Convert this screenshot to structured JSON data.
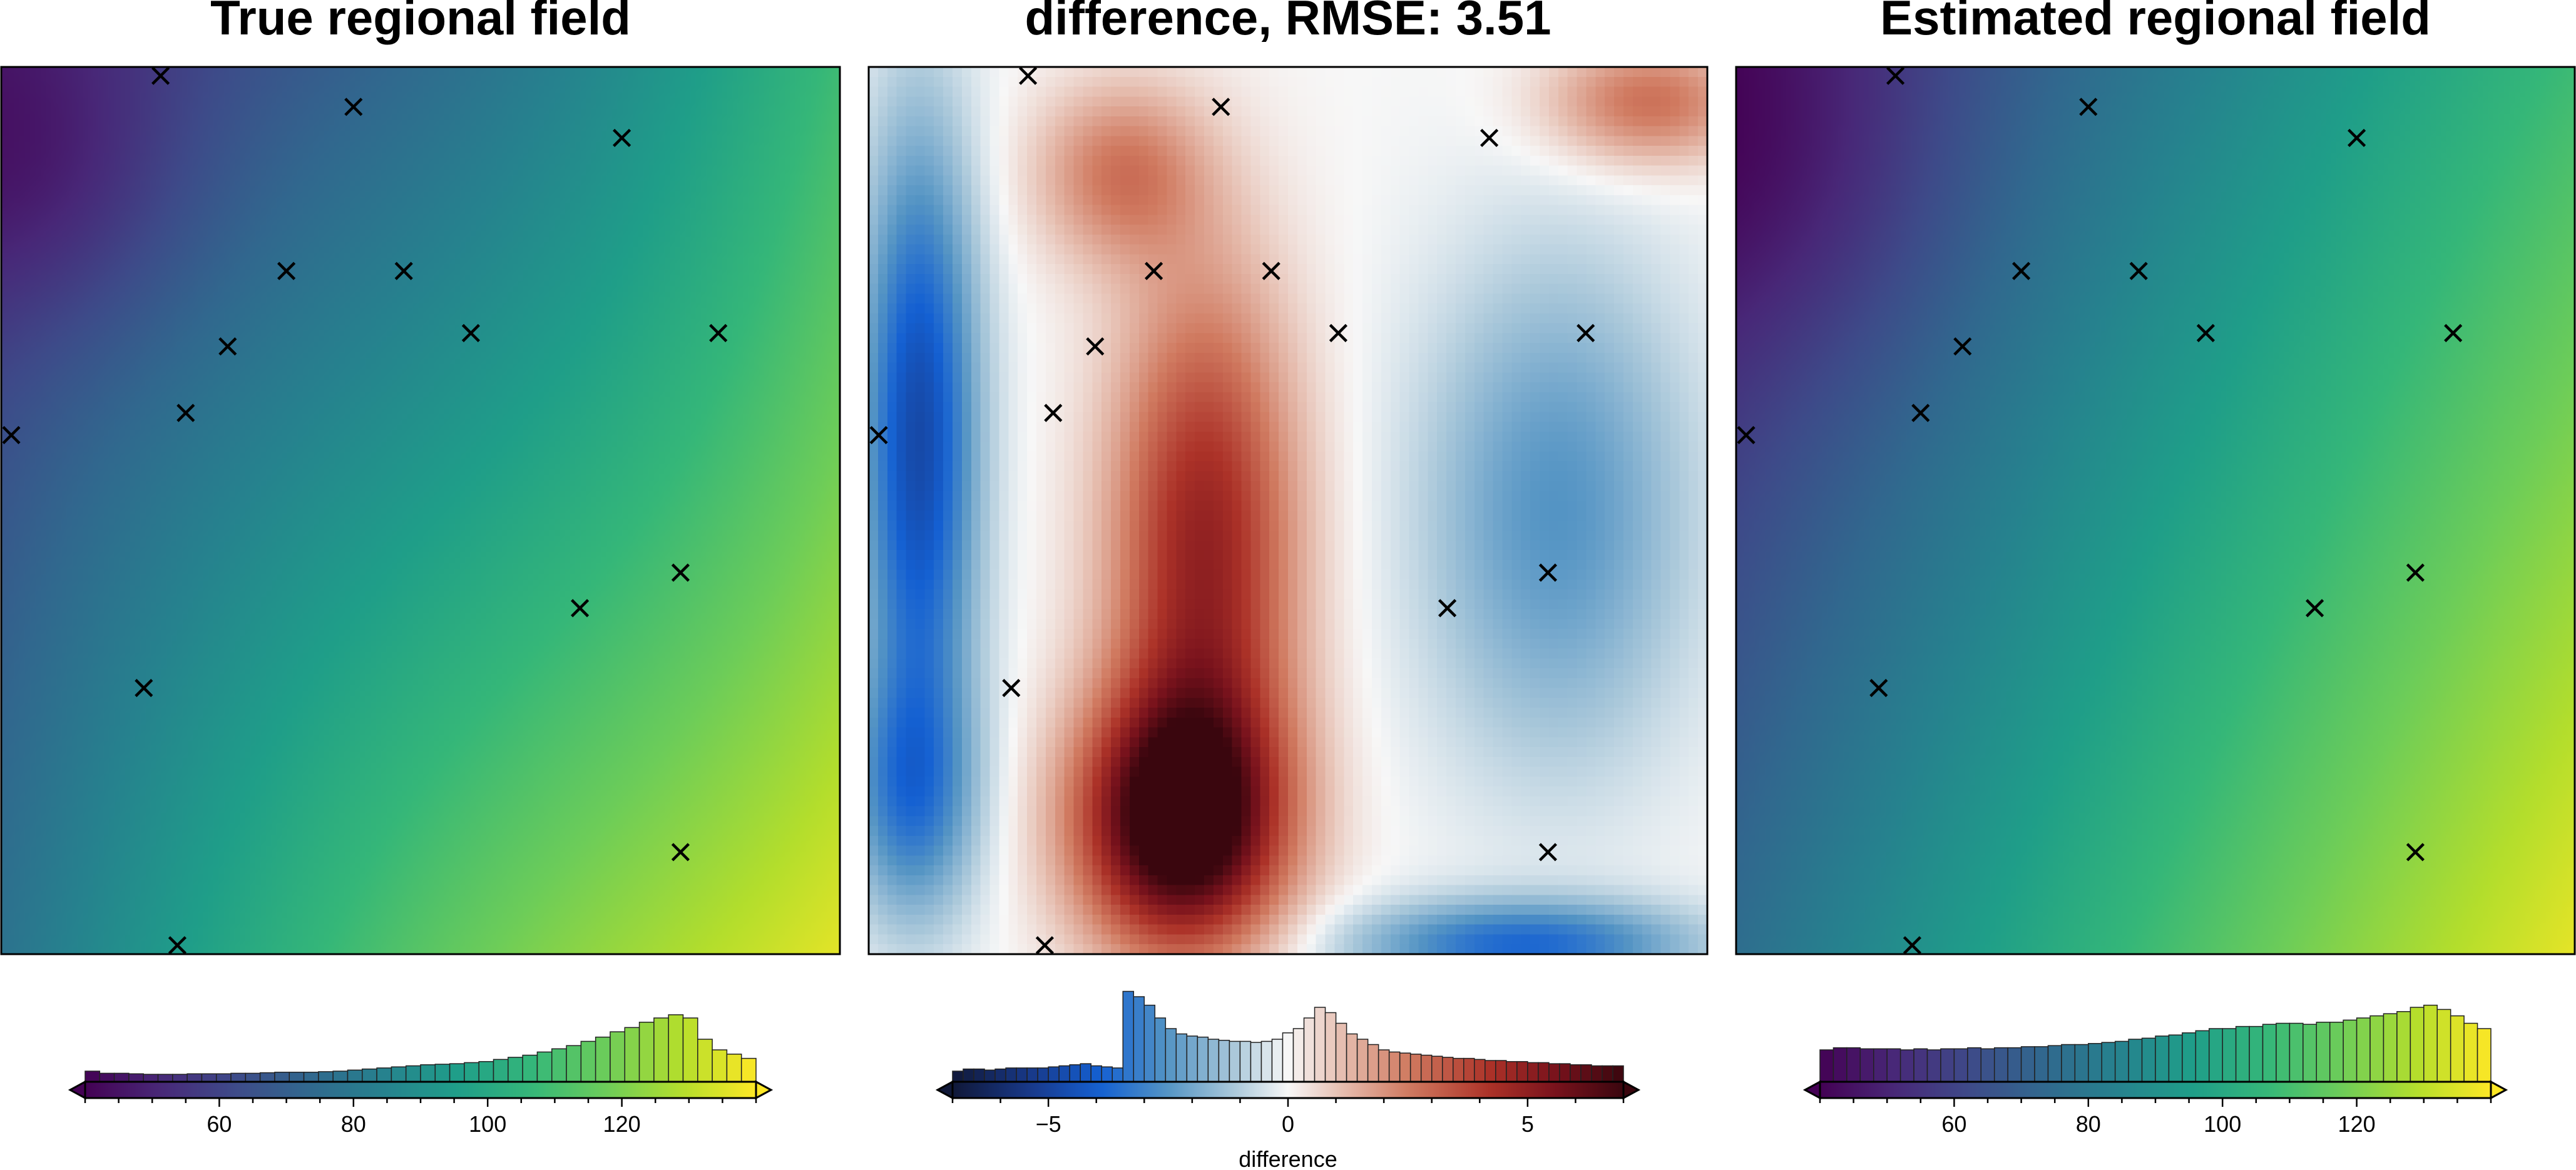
{
  "chart_data": [
    {
      "type": "heatmap",
      "title": "True regional field",
      "colormap": "viridis",
      "colorbar": {
        "range": [
          40,
          140
        ],
        "ticks": [
          60,
          80,
          100,
          120
        ],
        "label": "",
        "extend": "both"
      },
      "histogram": [
        0.1,
        0.08,
        0.08,
        0.075,
        0.07,
        0.07,
        0.07,
        0.075,
        0.075,
        0.075,
        0.08,
        0.08,
        0.085,
        0.09,
        0.09,
        0.09,
        0.095,
        0.1,
        0.11,
        0.12,
        0.13,
        0.14,
        0.15,
        0.16,
        0.165,
        0.17,
        0.18,
        0.19,
        0.21,
        0.23,
        0.25,
        0.28,
        0.31,
        0.34,
        0.38,
        0.42,
        0.47,
        0.51,
        0.56,
        0.6,
        0.63,
        0.6,
        0.4,
        0.3,
        0.26,
        0.22
      ],
      "samples": [
        [
          0.19,
          0.99
        ],
        [
          0.42,
          0.955
        ],
        [
          0.74,
          0.92
        ],
        [
          0.34,
          0.77
        ],
        [
          0.48,
          0.77
        ],
        [
          0.27,
          0.685
        ],
        [
          0.56,
          0.7
        ],
        [
          0.855,
          0.7
        ],
        [
          0.22,
          0.61
        ],
        [
          0.012,
          0.585
        ],
        [
          0.81,
          0.43
        ],
        [
          0.69,
          0.39
        ],
        [
          0.17,
          0.3
        ],
        [
          0.81,
          0.115
        ],
        [
          0.21,
          0.01
        ]
      ]
    },
    {
      "type": "heatmap",
      "title": "difference, RMSE: 3.51",
      "colormap": "diverging blue-white-red",
      "colorbar": {
        "range": [
          -7,
          7
        ],
        "ticks": [
          -5,
          0,
          5
        ],
        "label": "difference",
        "extend": "both"
      },
      "histogram": [
        0.1,
        0.12,
        0.12,
        0.11,
        0.12,
        0.13,
        0.13,
        0.13,
        0.13,
        0.14,
        0.15,
        0.16,
        0.17,
        0.15,
        0.14,
        0.13,
        0.85,
        0.8,
        0.72,
        0.6,
        0.5,
        0.45,
        0.43,
        0.42,
        0.4,
        0.39,
        0.38,
        0.38,
        0.37,
        0.38,
        0.4,
        0.46,
        0.5,
        0.6,
        0.7,
        0.65,
        0.55,
        0.45,
        0.4,
        0.35,
        0.3,
        0.28,
        0.27,
        0.26,
        0.25,
        0.24,
        0.23,
        0.22,
        0.22,
        0.21,
        0.2,
        0.2,
        0.19,
        0.19,
        0.18,
        0.18,
        0.17,
        0.17,
        0.16,
        0.16,
        0.15,
        0.15,
        0.15
      ]
    },
    {
      "type": "heatmap",
      "title": "Estimated regional field",
      "colormap": "viridis",
      "colorbar": {
        "range": [
          40,
          140
        ],
        "ticks": [
          60,
          80,
          100,
          120
        ],
        "label": "",
        "extend": "both"
      },
      "histogram": [
        0.3,
        0.32,
        0.32,
        0.31,
        0.31,
        0.31,
        0.3,
        0.31,
        0.3,
        0.31,
        0.31,
        0.32,
        0.31,
        0.32,
        0.32,
        0.33,
        0.33,
        0.34,
        0.35,
        0.35,
        0.36,
        0.37,
        0.38,
        0.4,
        0.41,
        0.43,
        0.44,
        0.46,
        0.48,
        0.5,
        0.5,
        0.52,
        0.52,
        0.54,
        0.55,
        0.55,
        0.54,
        0.56,
        0.56,
        0.58,
        0.6,
        0.62,
        0.64,
        0.66,
        0.7,
        0.72,
        0.68,
        0.62,
        0.55,
        0.5
      ]
    }
  ]
}
